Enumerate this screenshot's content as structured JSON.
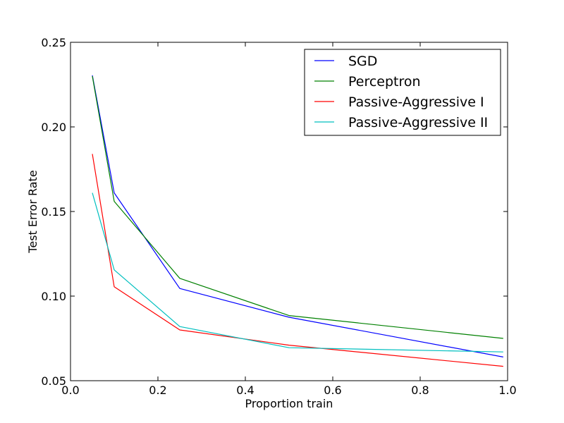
{
  "chart_data": {
    "type": "line",
    "title": "",
    "xlabel": "Proportion train",
    "ylabel": "Test Error Rate",
    "xlim": [
      0.0,
      1.0
    ],
    "ylim": [
      0.05,
      0.25
    ],
    "xticks": [
      0.0,
      0.2,
      0.4,
      0.6,
      0.8,
      1.0
    ],
    "xtick_labels": [
      "0.0",
      "0.2",
      "0.4",
      "0.6",
      "0.8",
      "1.0"
    ],
    "yticks": [
      0.05,
      0.1,
      0.15,
      0.2,
      0.25
    ],
    "ytick_labels": [
      "0.05",
      "0.10",
      "0.15",
      "0.20",
      "0.25"
    ],
    "grid": false,
    "legend_position": "top-right",
    "x": [
      0.05,
      0.1,
      0.25,
      0.5,
      0.99
    ],
    "series": [
      {
        "name": "SGD",
        "color": "#0000ff",
        "values": [
          0.2305,
          0.161,
          0.1045,
          0.0875,
          0.064
        ]
      },
      {
        "name": "Perceptron",
        "color": "#008000",
        "values": [
          0.23,
          0.156,
          0.1105,
          0.0885,
          0.075
        ]
      },
      {
        "name": "Passive-Aggressive I",
        "color": "#ff0000",
        "values": [
          0.184,
          0.1055,
          0.08,
          0.071,
          0.0585
        ]
      },
      {
        "name": "Passive-Aggressive II",
        "color": "#00bfbf",
        "values": [
          0.161,
          0.1155,
          0.082,
          0.0695,
          0.067
        ]
      }
    ]
  }
}
